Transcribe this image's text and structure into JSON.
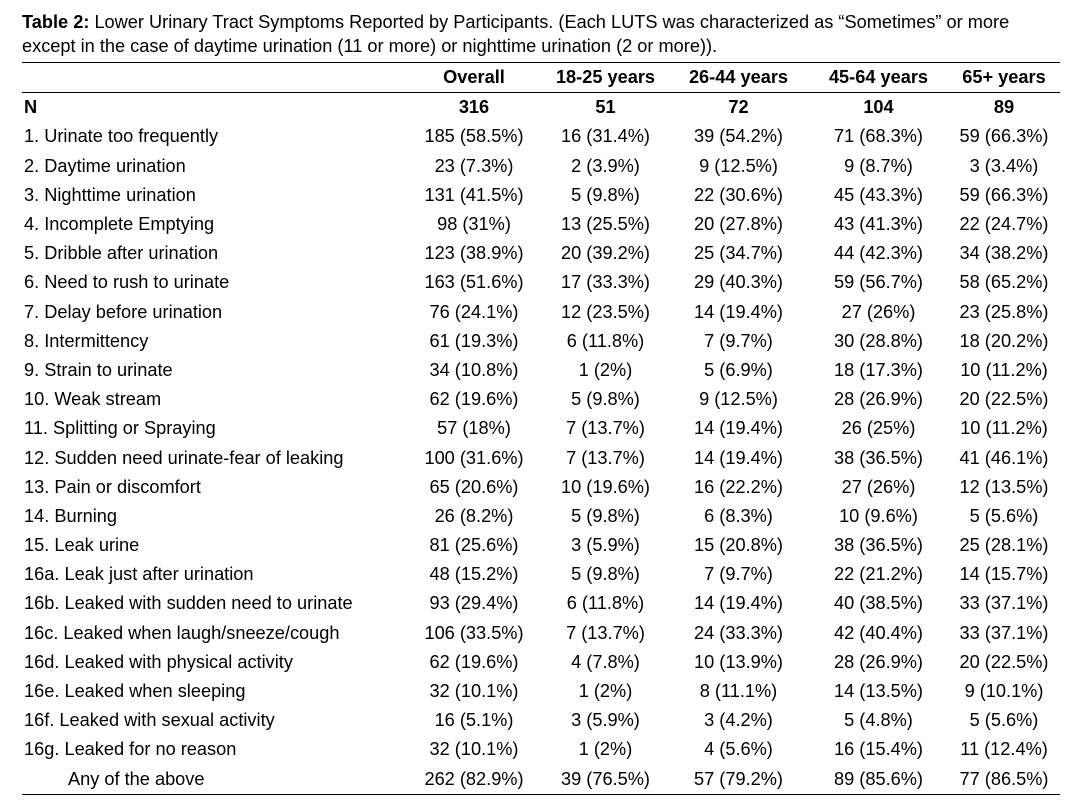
{
  "caption": {
    "label": "Table 2:",
    "text": " Lower Urinary Tract Symptoms Reported by Participants. (Each LUTS was characterized as “Sometimes” or more except in the case of daytime urination (11 or more) or nighttime urination (2 or more))."
  },
  "table": {
    "columns": [
      "",
      "Overall",
      "18-25 years",
      "26-44 years",
      "45-64 years",
      "65+ years"
    ],
    "n_row": [
      "N",
      "316",
      "51",
      "72",
      "104",
      "89"
    ],
    "rows": [
      [
        "1. Urinate too frequently",
        "185 (58.5%)",
        "16 (31.4%)",
        "39 (54.2%)",
        "71 (68.3%)",
        "59 (66.3%)"
      ],
      [
        "2. Daytime urination",
        "23 (7.3%)",
        "2 (3.9%)",
        "9 (12.5%)",
        "9 (8.7%)",
        "3 (3.4%)"
      ],
      [
        "3. Nighttime urination",
        "131 (41.5%)",
        "5 (9.8%)",
        "22 (30.6%)",
        "45 (43.3%)",
        "59 (66.3%)"
      ],
      [
        "4. Incomplete Emptying",
        "98 (31%)",
        "13 (25.5%)",
        "20 (27.8%)",
        "43 (41.3%)",
        "22 (24.7%)"
      ],
      [
        "5. Dribble after urination",
        "123 (38.9%)",
        "20 (39.2%)",
        "25 (34.7%)",
        "44 (42.3%)",
        "34 (38.2%)"
      ],
      [
        "6. Need to rush to urinate",
        "163 (51.6%)",
        "17 (33.3%)",
        "29 (40.3%)",
        "59 (56.7%)",
        "58 (65.2%)"
      ],
      [
        "7. Delay before urination",
        "76 (24.1%)",
        "12 (23.5%)",
        "14 (19.4%)",
        "27 (26%)",
        "23 (25.8%)"
      ],
      [
        "8. Intermittency",
        "61 (19.3%)",
        "6 (11.8%)",
        "7 (9.7%)",
        "30 (28.8%)",
        "18 (20.2%)"
      ],
      [
        "9. Strain to urinate",
        "34 (10.8%)",
        "1 (2%)",
        "5 (6.9%)",
        "18 (17.3%)",
        "10 (11.2%)"
      ],
      [
        "10. Weak stream",
        "62 (19.6%)",
        "5 (9.8%)",
        "9 (12.5%)",
        "28 (26.9%)",
        "20 (22.5%)"
      ],
      [
        "11. Splitting or Spraying",
        "57 (18%)",
        "7 (13.7%)",
        "14 (19.4%)",
        "26 (25%)",
        "10 (11.2%)"
      ],
      [
        "12. Sudden need urinate-fear of leaking",
        "100 (31.6%)",
        "7 (13.7%)",
        "14 (19.4%)",
        "38 (36.5%)",
        "41 (46.1%)"
      ],
      [
        "13. Pain or discomfort",
        "65 (20.6%)",
        "10 (19.6%)",
        "16 (22.2%)",
        "27 (26%)",
        "12 (13.5%)"
      ],
      [
        "14. Burning",
        "26 (8.2%)",
        "5 (9.8%)",
        "6 (8.3%)",
        "10 (9.6%)",
        "5 (5.6%)"
      ],
      [
        "15. Leak urine",
        "81 (25.6%)",
        "3 (5.9%)",
        "15 (20.8%)",
        "38 (36.5%)",
        "25 (28.1%)"
      ],
      [
        "16a. Leak just after urination",
        "48 (15.2%)",
        "5 (9.8%)",
        "7 (9.7%)",
        "22 (21.2%)",
        "14 (15.7%)"
      ],
      [
        "16b. Leaked with sudden need to urinate",
        "93 (29.4%)",
        "6 (11.8%)",
        "14 (19.4%)",
        "40 (38.5%)",
        "33 (37.1%)"
      ],
      [
        "16c. Leaked when laugh/sneeze/cough",
        "106 (33.5%)",
        "7 (13.7%)",
        "24 (33.3%)",
        "42 (40.4%)",
        "33 (37.1%)"
      ],
      [
        "16d. Leaked with physical activity",
        "62 (19.6%)",
        "4 (7.8%)",
        "10 (13.9%)",
        "28 (26.9%)",
        "20 (22.5%)"
      ],
      [
        "16e. Leaked when sleeping",
        "32 (10.1%)",
        "1 (2%)",
        "8 (11.1%)",
        "14 (13.5%)",
        "9 (10.1%)"
      ],
      [
        "16f. Leaked with sexual activity",
        "16 (5.1%)",
        "3 (5.9%)",
        "3 (4.2%)",
        "5 (4.8%)",
        "5 (5.6%)"
      ],
      [
        "16g. Leaked for no reason",
        "32 (10.1%)",
        "1 (2%)",
        "4 (5.6%)",
        "16 (15.4%)",
        "11 (12.4%)"
      ]
    ],
    "total_row": [
      "Any of the above",
      "262 (82.9%)",
      "39 (76.5%)",
      "57 (79.2%)",
      "89 (85.6%)",
      "77 (86.5%)"
    ]
  }
}
